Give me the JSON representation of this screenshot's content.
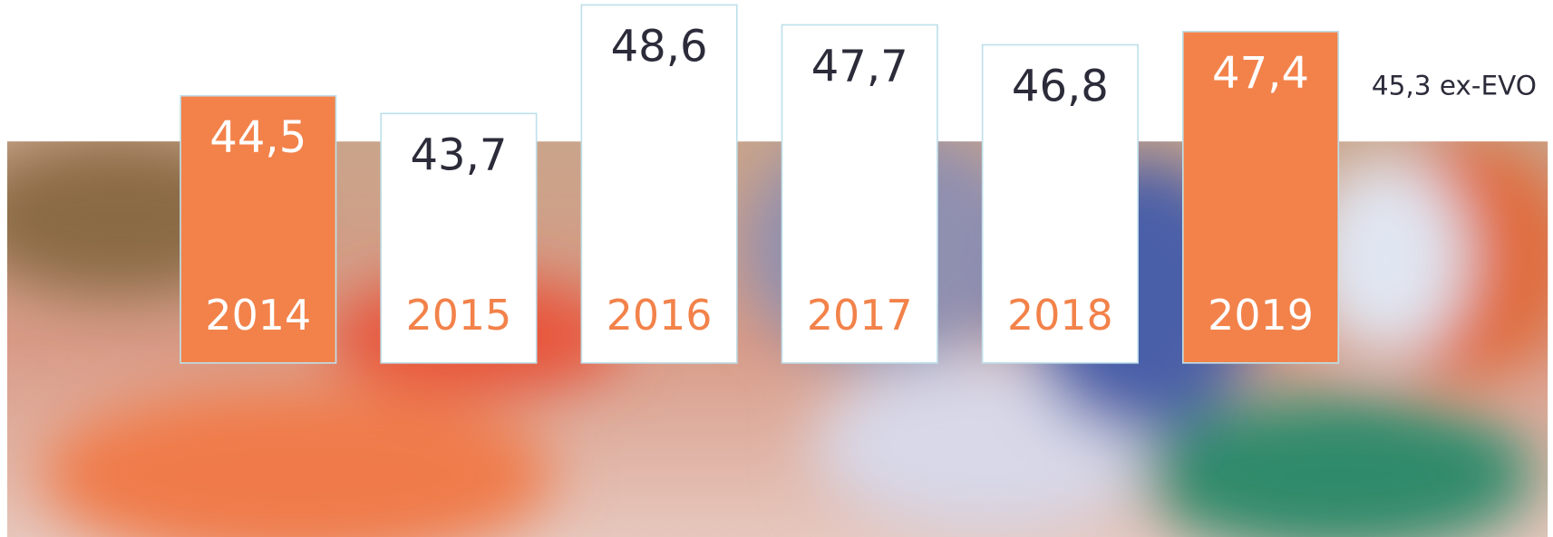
{
  "chart_data": {
    "type": "bar",
    "categories": [
      "2014",
      "2015",
      "2016",
      "2017",
      "2018",
      "2019"
    ],
    "values": [
      44.5,
      43.7,
      48.6,
      47.7,
      46.8,
      47.4
    ],
    "value_labels": [
      "44,5",
      "43,7",
      "48,6",
      "47,7",
      "46,8",
      "47,4"
    ],
    "colors": [
      "#f2824a",
      "#ffffff",
      "#ffffff",
      "#ffffff",
      "#ffffff",
      "#f2824a"
    ],
    "annotation": "45,3 ex-EVO"
  }
}
